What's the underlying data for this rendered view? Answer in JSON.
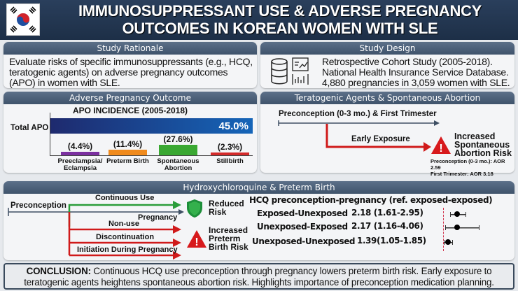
{
  "header": {
    "title_line1": "IMMUNOSUPPRESSANT USE & ADVERSE PREGNANCY",
    "title_line2": "OUTCOMES IN KOREAN WOMEN WITH SLE",
    "flag_icon": "south-korea-flag"
  },
  "rationale": {
    "title": "Study Rationale",
    "line1": "Evaluate risks of specific immunosuppressants (e.g., HCQ,",
    "line2": "teratogenic agents) on adverse pregnancy outcomes",
    "line3": "(APO) in women with SLE."
  },
  "design": {
    "title": "Study Design",
    "line1": "Retrospective Cohort Study (2005-2018).",
    "line2": "National Health Insurance Service Database.",
    "line3": "4,880 pregnancies in 3,059 women with SLE.",
    "icons": [
      "database-icon",
      "report-chart-icon"
    ]
  },
  "apo": {
    "title": "Adverse Pregnancy Outcome",
    "chart_data": {
      "type": "bar",
      "title": "APO INCIDENCE (2005-2018)",
      "total": {
        "label": "Total APO",
        "value": 45.0,
        "display": "45.0%"
      },
      "categories": [
        "Preeclampsia/ Eclampsia",
        "Preterm Birth",
        "Spontaneous Abortion",
        "Stillbirth"
      ],
      "values": [
        4.4,
        11.4,
        27.6,
        2.3
      ],
      "displays": [
        "(4.4%)",
        "(11.4%)",
        "(27.6%)",
        "(2.3%)"
      ],
      "colors": [
        "#7b2fa0",
        "#f08a1c",
        "#3aa832",
        "#d42a2a"
      ]
    }
  },
  "terato": {
    "title": "Teratogenic Agents & Spontaneous Abortion",
    "timeline": "Preconception (0-3 mo.) & First Trimester",
    "exposure": "Early Exposure",
    "risk1": "Increased",
    "risk2": "Spontaneous",
    "risk3": "Abortion Risk",
    "aor1": "Preconception (0-3 mo.): AOR 2.59",
    "aor2": "First Trimester: AOR 3.18"
  },
  "hcq": {
    "title": "Hydroxychloroquine & Preterm Birth",
    "preconception": "Preconception",
    "pregnancy": "Pregnancy",
    "continuous": "Continuous Use",
    "nonuse": "Non-use",
    "discontinuation": "Discontinuation",
    "initiation": "Initiation During Pregnancy",
    "reduced1": "Reduced",
    "reduced2": "Risk",
    "inc1": "Increased",
    "inc2": "Preterm",
    "inc3": "Birth Risk",
    "chart_data": {
      "type": "forest",
      "title": "HCQ preconception-pregnancy (ref. exposed-exposed)",
      "reference": 1,
      "rows": [
        {
          "label": "Exposed-Unexposed",
          "or": 2.18,
          "lo": 1.61,
          "hi": 2.95,
          "text": "2.18 (1.61-2.95)"
        },
        {
          "label": "Unexposed-Exposed",
          "or": 2.17,
          "lo": 1.16,
          "hi": 4.06,
          "text": "2.17 (1.16-4.06)"
        },
        {
          "label": "Unexposed-Unexposed",
          "or": 1.39,
          "lo": 1.05,
          "hi": 1.85,
          "text": "1.39(1.05-1.85)"
        }
      ]
    }
  },
  "conclusion": {
    "label": "CONCLUSION:",
    "text": " Continuous HCQ use preconception through pregnancy lowers preterm birth risk. Early exposure to teratogenic agents heightens spontaneous abortion risk. Highlights importance of preconception medication planning."
  }
}
